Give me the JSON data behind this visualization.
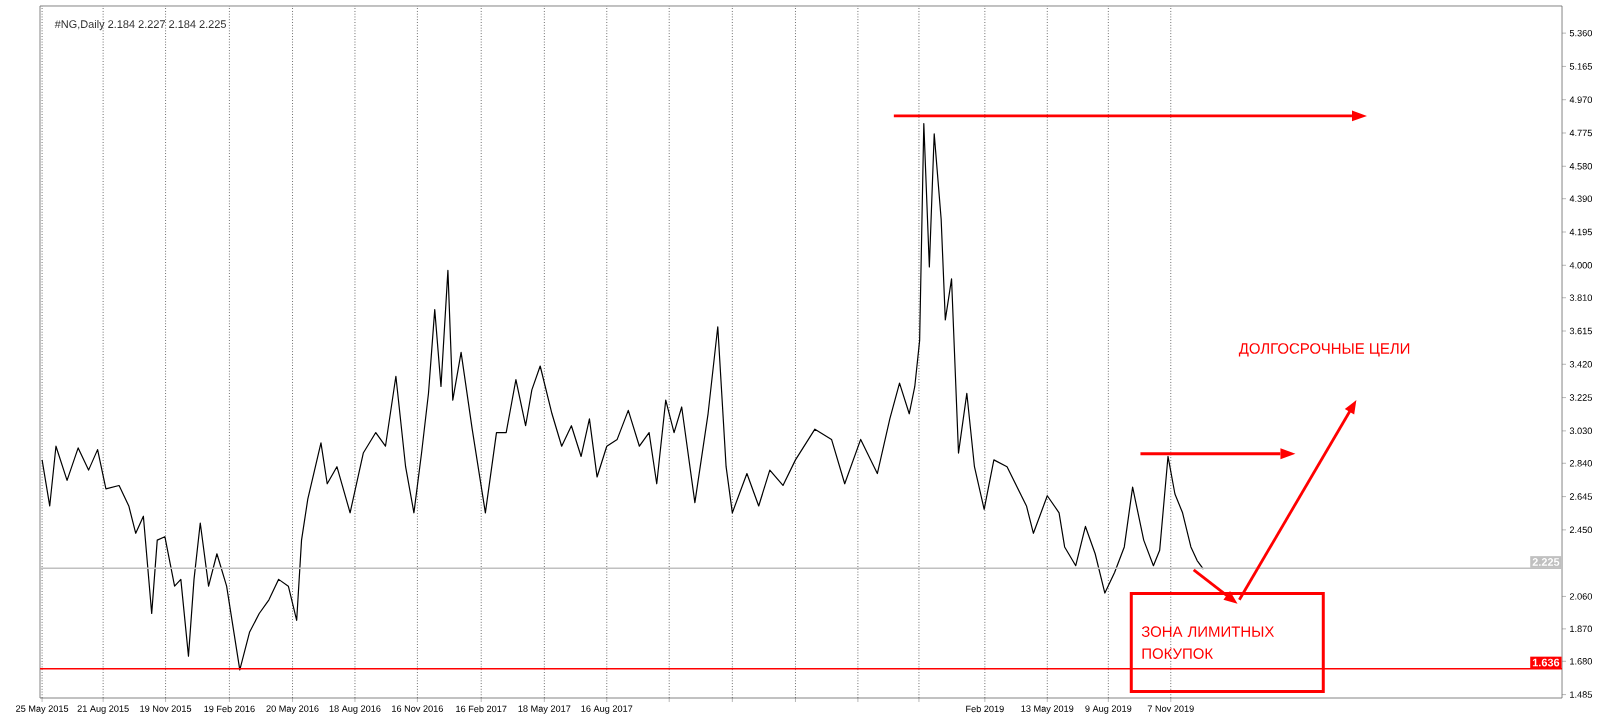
{
  "chart_data": {
    "type": "line",
    "title": "#NG,Daily 2.184 2.227 2.184 2.225",
    "x": [
      "2015-05-25",
      "2015-06-05",
      "2015-06-14",
      "2015-06-30",
      "2015-07-16",
      "2015-07-31",
      "2015-08-13",
      "2015-08-25",
      "2015-09-13",
      "2015-09-27",
      "2015-10-07",
      "2015-10-18",
      "2015-10-30",
      "2015-11-07",
      "2015-11-18",
      "2015-12-02",
      "2015-12-11",
      "2015-12-22",
      "2015-12-30",
      "2016-01-08",
      "2016-01-20",
      "2016-02-01",
      "2016-02-15",
      "2016-03-05",
      "2016-03-19",
      "2016-04-02",
      "2016-04-16",
      "2016-04-30",
      "2016-05-14",
      "2016-05-26",
      "2016-06-02",
      "2016-06-11",
      "2016-06-30",
      "2016-07-09",
      "2016-07-23",
      "2016-08-11",
      "2016-08-30",
      "2016-09-17",
      "2016-10-01",
      "2016-10-16",
      "2016-10-30",
      "2016-11-11",
      "2016-11-22",
      "2016-12-02",
      "2016-12-11",
      "2016-12-20",
      "2016-12-30",
      "2017-01-06",
      "2017-01-18",
      "2017-02-03",
      "2017-02-22",
      "2017-03-10",
      "2017-03-24",
      "2017-04-07",
      "2017-04-21",
      "2017-04-30",
      "2017-05-12",
      "2017-05-29",
      "2017-06-12",
      "2017-06-26",
      "2017-07-10",
      "2017-07-22",
      "2017-08-02",
      "2017-08-16",
      "2017-08-31",
      "2017-09-16",
      "2017-10-02",
      "2017-10-16",
      "2017-10-27",
      "2017-11-09",
      "2017-11-21",
      "2017-12-02",
      "2017-12-21",
      "2018-01-09",
      "2018-01-23",
      "2018-02-04",
      "2018-02-13",
      "2018-03-06",
      "2018-03-23",
      "2018-04-08",
      "2018-04-27",
      "2018-05-15",
      "2018-06-12",
      "2018-07-06",
      "2018-07-25",
      "2018-08-17",
      "2018-09-10",
      "2018-09-28",
      "2018-10-12",
      "2018-10-26",
      "2018-11-03",
      "2018-11-10",
      "2018-11-16",
      "2018-11-24",
      "2018-12-01",
      "2018-12-11",
      "2018-12-17",
      "2018-12-26",
      "2019-01-05",
      "2019-01-17",
      "2019-01-28",
      "2019-02-11",
      "2019-02-25",
      "2019-03-16",
      "2019-04-13",
      "2019-04-23",
      "2019-05-13",
      "2019-05-30",
      "2019-06-07",
      "2019-06-23",
      "2019-07-07",
      "2019-07-21",
      "2019-08-04",
      "2019-08-18",
      "2019-09-01",
      "2019-09-13",
      "2019-09-29",
      "2019-10-13",
      "2019-10-22",
      "2019-11-03",
      "2019-11-13",
      "2019-11-24",
      "2019-12-06",
      "2019-12-15",
      "2019-12-24"
    ],
    "series": [
      {
        "color": "#000000",
        "values": [
          2.86,
          2.59,
          2.94,
          2.74,
          2.93,
          2.8,
          2.92,
          2.69,
          2.71,
          2.59,
          2.43,
          2.53,
          1.96,
          2.39,
          2.41,
          2.12,
          2.16,
          1.71,
          2.16,
          2.49,
          2.12,
          2.31,
          2.12,
          1.63,
          1.85,
          1.96,
          2.04,
          2.16,
          2.12,
          1.92,
          2.39,
          2.63,
          2.96,
          2.72,
          2.82,
          2.55,
          2.9,
          3.02,
          2.94,
          3.35,
          2.82,
          2.55,
          2.9,
          3.25,
          3.74,
          3.29,
          3.97,
          3.21,
          3.49,
          3.04,
          2.55,
          3.02,
          3.02,
          3.33,
          3.06,
          3.27,
          3.41,
          3.13,
          2.94,
          3.06,
          2.88,
          3.1,
          2.76,
          2.94,
          2.98,
          3.15,
          2.94,
          3.02,
          2.72,
          3.21,
          3.02,
          3.17,
          2.61,
          3.13,
          3.64,
          2.82,
          2.55,
          2.78,
          2.59,
          2.8,
          2.71,
          2.86,
          3.04,
          2.98,
          2.72,
          2.98,
          2.78,
          3.1,
          3.31,
          3.13,
          3.29,
          3.56,
          4.83,
          3.99,
          4.77,
          4.27,
          3.68,
          3.92,
          2.9,
          3.25,
          2.82,
          2.57,
          2.86,
          2.82,
          2.59,
          2.43,
          2.65,
          2.55,
          2.35,
          2.24,
          2.47,
          2.31,
          2.08,
          2.2,
          2.35,
          2.7,
          2.39,
          2.24,
          2.33,
          2.88,
          2.66,
          2.55,
          2.35,
          2.27,
          2.22
        ]
      }
    ],
    "xlim": [
      "2015-05-22",
      "2021-05-24"
    ],
    "xticks": [
      {
        "value": "2015-05-25",
        "label": "25 May 2015"
      },
      {
        "value": "2015-08-21",
        "label": "21 Aug 2015"
      },
      {
        "value": "2015-11-19",
        "label": "19 Nov 2015"
      },
      {
        "value": "2016-02-19",
        "label": "19 Feb 2016"
      },
      {
        "value": "2016-05-20",
        "label": "20 May 2016"
      },
      {
        "value": "2016-08-18",
        "label": "18 Aug 2016"
      },
      {
        "value": "2016-11-16",
        "label": "16 Nov 2016"
      },
      {
        "value": "2017-02-16",
        "label": "16 Feb 2017"
      },
      {
        "value": "2017-05-18",
        "label": "18 May 2017"
      },
      {
        "value": "2017-08-16",
        "label": "16 Aug 2017"
      },
      {
        "value": "2017-11-14",
        "label": null
      },
      {
        "value": "2018-02-13",
        "label": null
      },
      {
        "value": "2018-05-15",
        "label": null
      },
      {
        "value": "2018-08-13",
        "label": null
      },
      {
        "value": "2018-11-09",
        "label": null
      },
      {
        "value": "2019-02-12",
        "label": "Feb 2019"
      },
      {
        "value": "2019-05-13",
        "label": "13 May 2019"
      },
      {
        "value": "2019-08-09",
        "label": "9 Aug 2019"
      },
      {
        "value": "2019-11-07",
        "label": "7 Nov 2019"
      }
    ],
    "ylim": [
      1.465,
      5.519
    ],
    "yticks": [
      {
        "value": 5.36,
        "label": "5.360"
      },
      {
        "value": 5.165,
        "label": "5.165"
      },
      {
        "value": 4.97,
        "label": "4.970"
      },
      {
        "value": 4.775,
        "label": "4.775"
      },
      {
        "value": 4.58,
        "label": "4.580"
      },
      {
        "value": 4.39,
        "label": "4.390"
      },
      {
        "value": 4.195,
        "label": "4.195"
      },
      {
        "value": 4.0,
        "label": "4.000"
      },
      {
        "value": 3.81,
        "label": "3.810"
      },
      {
        "value": 3.615,
        "label": "3.615"
      },
      {
        "value": 3.42,
        "label": "3.420"
      },
      {
        "value": 3.225,
        "label": "3.225"
      },
      {
        "value": 3.03,
        "label": "3.030"
      },
      {
        "value": 2.84,
        "label": "2.840"
      },
      {
        "value": 2.645,
        "label": "2.645"
      },
      {
        "value": 2.45,
        "label": "2.450"
      },
      {
        "value": 2.06,
        "label": "2.060"
      },
      {
        "value": 1.87,
        "label": "1.870"
      },
      {
        "value": 1.68,
        "label": "1.680"
      },
      {
        "value": 1.485,
        "label": "1.485"
      }
    ],
    "grid": "x",
    "ref_lines": [
      {
        "axis": "y",
        "value": 1.636,
        "label": "1.636",
        "color": "#ff0000"
      },
      {
        "axis": "y",
        "value": 2.225,
        "label": "2.225",
        "color": "#c0c0c0"
      },
      {
        "axis": "y",
        "value": 4.875,
        "color": "#ff0000"
      },
      {
        "axis": "y",
        "value": 2.896,
        "color": "#ff0000"
      }
    ],
    "annotations": [
      "ДОЛГОСРОЧНЫЕ ЦЕЛИ",
      "ЗОНА ЛИМИТНЫХ ПОКУПОК"
    ]
  }
}
